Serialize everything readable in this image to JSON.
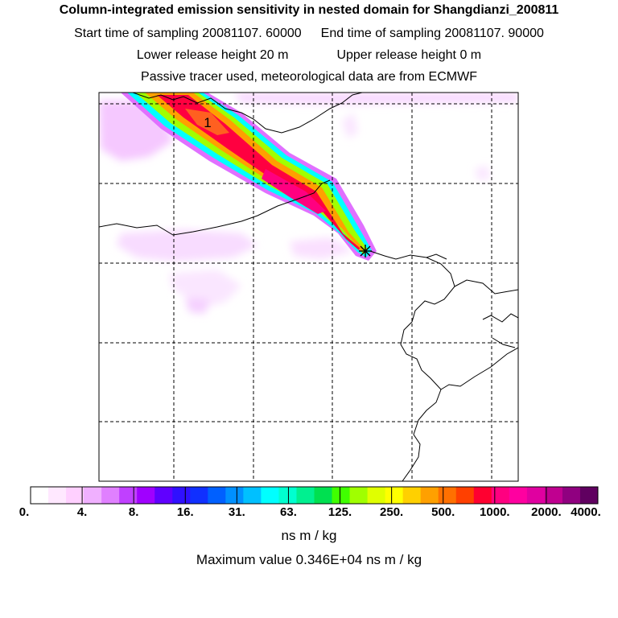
{
  "titles": {
    "line1": "Column-integrated emission sensitivity in nested domain for Shangdianzi_200811",
    "start_label": "Start time of sampling 20081107. 60000",
    "end_label": "End time of sampling 20081107. 90000",
    "lower_label": "Lower release height   20 m",
    "upper_label": "Upper release height    0 m",
    "line4": "Passive tracer used, meteorological data are from ECMWF"
  },
  "map": {
    "contour_label": "1",
    "receptor_symbol": "star"
  },
  "colorbar": {
    "labels": [
      "0.",
      "4.",
      "8.",
      "16.",
      "31.",
      "63.",
      "125.",
      "250.",
      "500.",
      "1000.",
      "2000.",
      "4000."
    ],
    "colors": [
      "#ffffff",
      "#ffe8ff",
      "#ffd0ff",
      "#f0b0ff",
      "#e080ff",
      "#c040ff",
      "#a000ff",
      "#6000ff",
      "#3010ff",
      "#1030ff",
      "#0060ff",
      "#0090ff",
      "#00c0ff",
      "#00ffff",
      "#00ffd0",
      "#00f090",
      "#00e050",
      "#40ff00",
      "#a0ff00",
      "#e0ff00",
      "#ffff00",
      "#ffd000",
      "#ffa000",
      "#ff7000",
      "#ff4000",
      "#ff0030",
      "#ff0080",
      "#ff00a0",
      "#e000a0",
      "#c00090",
      "#900080",
      "#600060"
    ],
    "units": "ns m / kg"
  },
  "maximum": "Maximum value  0.346E+04 ns m / kg"
}
